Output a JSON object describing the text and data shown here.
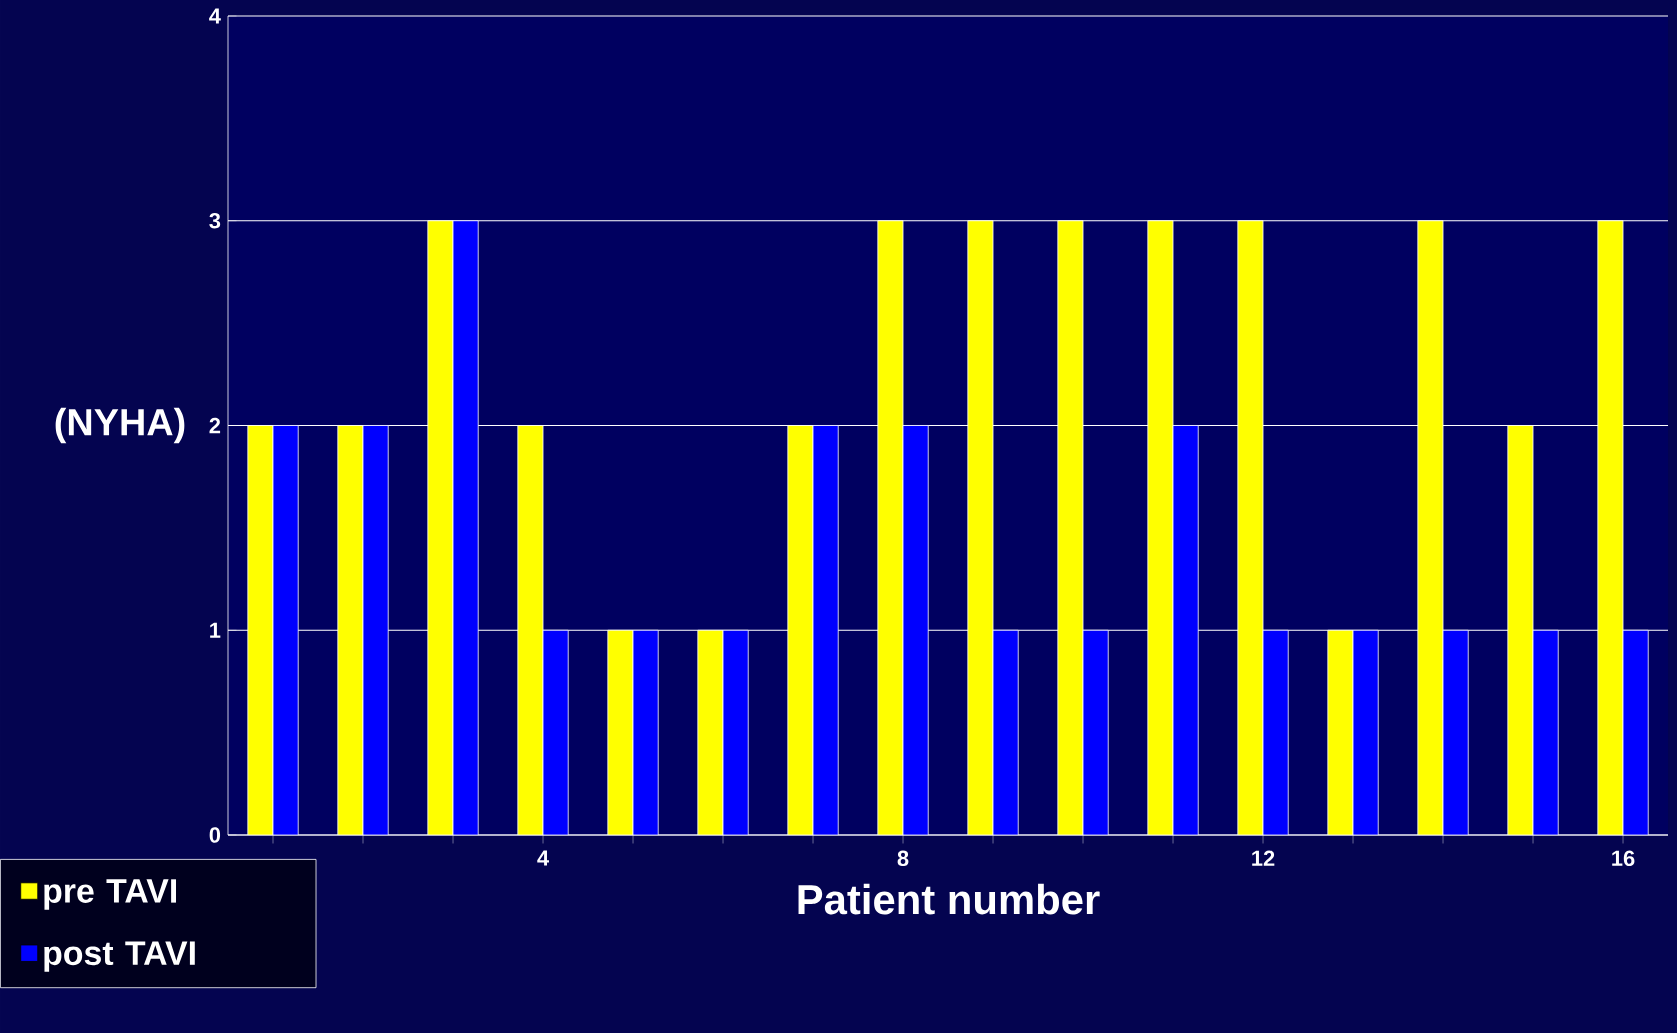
{
  "chart_data": {
    "type": "bar",
    "xlabel": "Patient number",
    "ylabel": "(NYHA)",
    "categories": [
      null,
      null,
      null,
      "4",
      null,
      null,
      null,
      "8",
      null,
      null,
      null,
      "12",
      null,
      null,
      null,
      "16"
    ],
    "series": [
      {
        "name": "pre TAVI",
        "color": "#ffff00",
        "values": [
          2,
          2,
          3,
          2,
          1,
          1,
          2,
          3,
          3,
          3,
          3,
          3,
          1,
          3,
          2,
          3
        ]
      },
      {
        "name": "post TAVI",
        "color": "#0000ff",
        "values": [
          2,
          2,
          3,
          1,
          1,
          1,
          2,
          2,
          1,
          1,
          2,
          1,
          1,
          1,
          1,
          1
        ]
      }
    ],
    "ylim": [
      0,
      4
    ],
    "yticks": [
      0,
      1,
      2,
      3,
      4
    ],
    "grid": "y",
    "legend": "bottom left"
  }
}
